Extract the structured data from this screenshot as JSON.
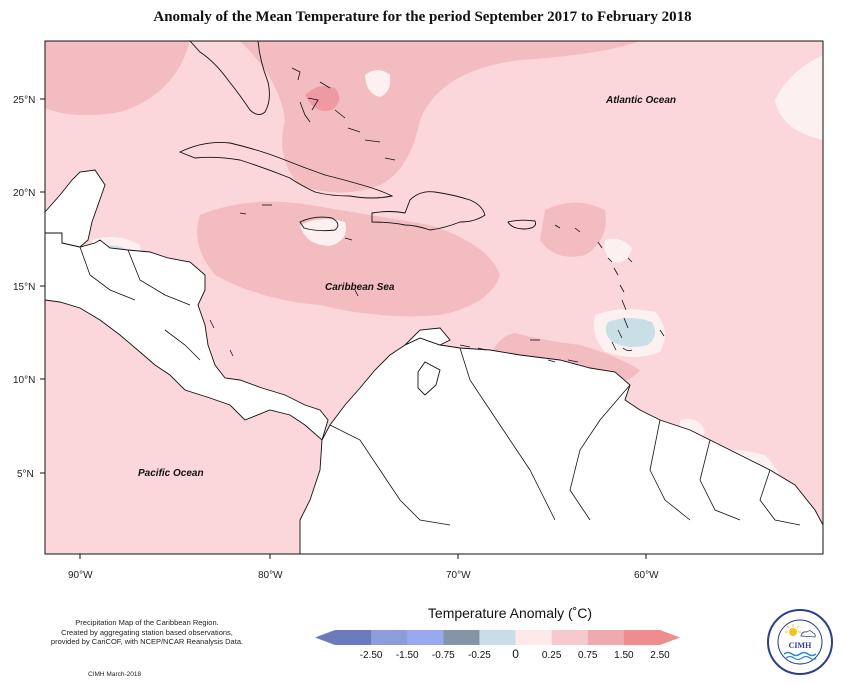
{
  "title": "Anomaly of the Mean Temperature for the period September 2017 to February 2018",
  "axes": {
    "x_ticks": [
      "90°W",
      "80°W",
      "70°W",
      "60°W"
    ],
    "y_ticks": [
      "25°N",
      "20°N",
      "15°N",
      "10°N",
      "5°N"
    ]
  },
  "labels": {
    "atlantic": "Atlantic Ocean",
    "caribbean": "Caribbean Sea",
    "pacific": "Pacific Ocean"
  },
  "legend": {
    "title": "Temperature Anomaly (˚C)",
    "ticks": [
      "-2.50",
      "-1.50",
      "-0.75",
      "-0.25",
      "0",
      "0.25",
      "0.75",
      "1.50",
      "2.50"
    ],
    "colors": [
      "#6b7bbd",
      "#8d9ddc",
      "#9aa8ef",
      "#8595a8",
      "#c8dde5",
      "#fde8ea",
      "#f6c9cf",
      "#efa9b0",
      "#ef8c8e"
    ]
  },
  "footnote": [
    "Precipitation Map of the Caribbean Region.",
    "Created by aggregating station based observations,",
    "provided by CariCOF, with NCEP/NCAR Reanalysis Data."
  ],
  "credit": "CIMH March-2018",
  "logo": {
    "name": "CIMH",
    "ring_text": "Caribbean Institute for Meteorology and Hydrology"
  },
  "colors": {
    "base": "#fbd6da",
    "mid": "#f3bcc1",
    "high": "#ef9aa2",
    "cool": "#c9dfe6",
    "cooler": "#7f95b4",
    "neutral": "#fdf0f1"
  }
}
